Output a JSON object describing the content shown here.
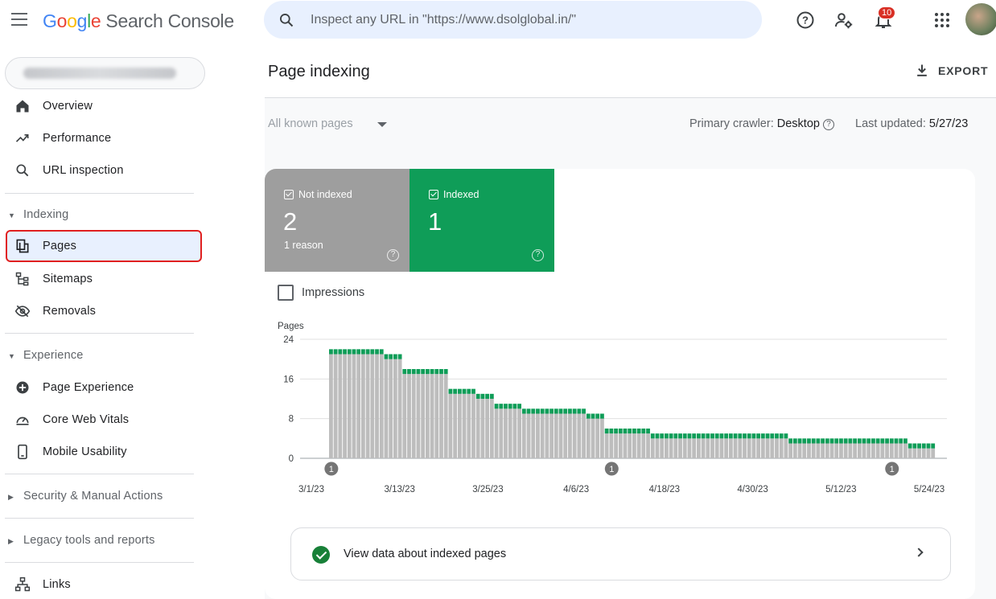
{
  "app": {
    "logo_google": "Google",
    "logo_product": "Search Console",
    "search_placeholder": "Inspect any URL in \"https://www.dsolglobal.in/\"",
    "notification_count": "10"
  },
  "sidebar": {
    "property_url": "https://www.dsolglobal.in/",
    "top_items": [
      {
        "label": "Overview",
        "icon": "home-icon"
      },
      {
        "label": "Performance",
        "icon": "trending-up-icon"
      },
      {
        "label": "URL inspection",
        "icon": "search-icon"
      }
    ],
    "indexing_header": "Indexing",
    "indexing_items": [
      {
        "label": "Pages",
        "icon": "pages-icon",
        "active": true
      },
      {
        "label": "Sitemaps",
        "icon": "sitemap-icon"
      },
      {
        "label": "Removals",
        "icon": "eye-off-icon"
      }
    ],
    "experience_header": "Experience",
    "experience_items": [
      {
        "label": "Page Experience",
        "icon": "plus-circle-icon"
      },
      {
        "label": "Core Web Vitals",
        "icon": "speed-icon"
      },
      {
        "label": "Mobile Usability",
        "icon": "phone-icon"
      }
    ],
    "security_header": "Security & Manual Actions",
    "legacy_header": "Legacy tools and reports",
    "links_label": "Links"
  },
  "main": {
    "title": "Page indexing",
    "export_label": "EXPORT",
    "filter_label": "All known pages",
    "crawler_label": "Primary crawler:",
    "crawler_value": "Desktop",
    "updated_label": "Last updated:",
    "updated_value": "5/27/23",
    "tiles": {
      "not_indexed_label": "Not indexed",
      "not_indexed_value": "2",
      "not_indexed_sub": "1 reason",
      "indexed_label": "Indexed",
      "indexed_value": "1"
    },
    "impressions_label": "Impressions",
    "view_data_label": "View data about indexed pages"
  },
  "colors": {
    "not_indexed": "#9e9e9e",
    "indexed": "#0f9d58",
    "accent": "#1a73e8"
  },
  "chart_data": {
    "type": "bar",
    "stacked": true,
    "ylabel": "Pages",
    "ylim": [
      0,
      24
    ],
    "yticks": [
      0,
      8,
      16,
      24
    ],
    "xtick_labels": [
      "3/1/23",
      "3/13/23",
      "3/25/23",
      "4/6/23",
      "4/18/23",
      "4/30/23",
      "5/12/23",
      "5/24/23"
    ],
    "annotations": [
      {
        "label": "1",
        "index": 0
      },
      {
        "label": "1",
        "index": 61
      },
      {
        "label": "1",
        "index": 122
      }
    ],
    "series": [
      {
        "name": "Not indexed",
        "color": "#bdbdbd",
        "values": [
          21,
          21,
          21,
          21,
          21,
          21,
          21,
          21,
          21,
          21,
          21,
          21,
          20,
          20,
          20,
          20,
          17,
          17,
          17,
          17,
          17,
          17,
          17,
          17,
          17,
          17,
          13,
          13,
          13,
          13,
          13,
          13,
          12,
          12,
          12,
          12,
          10,
          10,
          10,
          10,
          10,
          10,
          9,
          9,
          9,
          9,
          9,
          9,
          9,
          9,
          9,
          9,
          9,
          9,
          9,
          9,
          8,
          8,
          8,
          8,
          5,
          5,
          5,
          5,
          5,
          5,
          5,
          5,
          5,
          5,
          4,
          4,
          4,
          4,
          4,
          4,
          4,
          4,
          4,
          4,
          4,
          4,
          4,
          4,
          4,
          4,
          4,
          4,
          4,
          4,
          4,
          4,
          4,
          4,
          4,
          4,
          4,
          4,
          4,
          4,
          3,
          3,
          3,
          3,
          3,
          3,
          3,
          3,
          3,
          3,
          3,
          3,
          3,
          3,
          3,
          3,
          3,
          3,
          3,
          3,
          3,
          3,
          3,
          3,
          3,
          3,
          2,
          2,
          2,
          2,
          2,
          2
        ]
      },
      {
        "name": "Indexed",
        "color": "#0f9d58",
        "values": [
          1,
          1,
          1,
          1,
          1,
          1,
          1,
          1,
          1,
          1,
          1,
          1,
          1,
          1,
          1,
          1,
          1,
          1,
          1,
          1,
          1,
          1,
          1,
          1,
          1,
          1,
          1,
          1,
          1,
          1,
          1,
          1,
          1,
          1,
          1,
          1,
          1,
          1,
          1,
          1,
          1,
          1,
          1,
          1,
          1,
          1,
          1,
          1,
          1,
          1,
          1,
          1,
          1,
          1,
          1,
          1,
          1,
          1,
          1,
          1,
          1,
          1,
          1,
          1,
          1,
          1,
          1,
          1,
          1,
          1,
          1,
          1,
          1,
          1,
          1,
          1,
          1,
          1,
          1,
          1,
          1,
          1,
          1,
          1,
          1,
          1,
          1,
          1,
          1,
          1,
          1,
          1,
          1,
          1,
          1,
          1,
          1,
          1,
          1,
          1,
          1,
          1,
          1,
          1,
          1,
          1,
          1,
          1,
          1,
          1,
          1,
          1,
          1,
          1,
          1,
          1,
          1,
          1,
          1,
          1,
          1,
          1,
          1,
          1,
          1,
          1,
          1,
          1,
          1,
          1,
          1,
          1
        ]
      }
    ]
  }
}
